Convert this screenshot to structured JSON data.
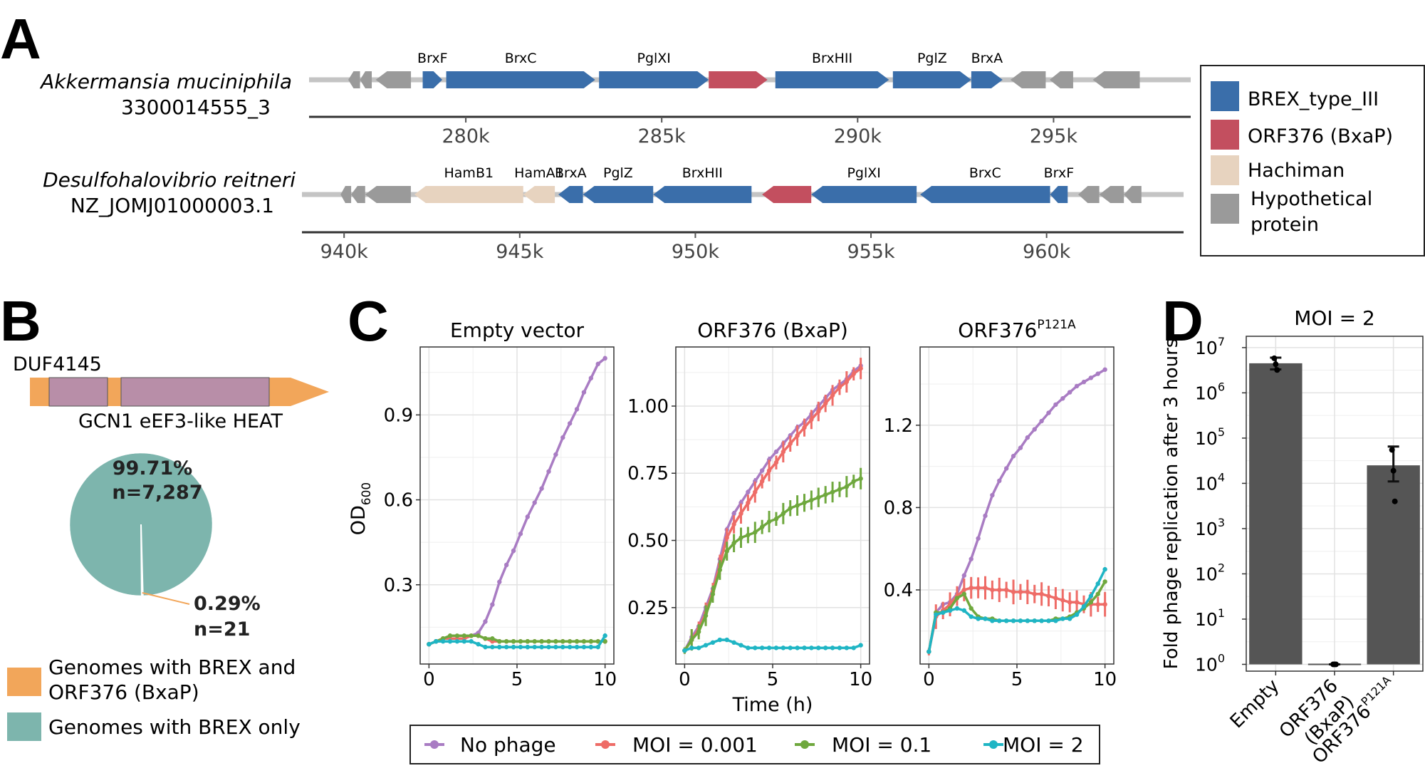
{
  "colors": {
    "brex": "#3a6eaa",
    "orf376": "#c34f5f",
    "hachiman": "#e7d3bf",
    "hypo": "#9a9a9a",
    "backbone": "#c4c4c4",
    "pie_brex": "#7db5ad",
    "pie_orf": "#f2a65a",
    "duf_orange": "#f2a65a",
    "duf_purple": "#b88ea8",
    "no_phage": "#a97cc3",
    "moi_0001": "#ee6c67",
    "moi_01": "#6fa83e",
    "moi_2": "#1fb5c4",
    "bar": "#555555"
  },
  "panel_a": {
    "label": "A",
    "legend": [
      {
        "key": "brex",
        "label": "BREX_type_III"
      },
      {
        "key": "orf376",
        "label": "ORF376 (BxaP)"
      },
      {
        "key": "hachiman",
        "label": "Hachiman"
      },
      {
        "key": "hypo",
        "label": "Hypothetical protein",
        "lines": [
          "Hypothetical",
          "protein"
        ]
      }
    ],
    "tracks": [
      {
        "name": "Akkermansia muciniphila",
        "id": "3300014555_3",
        "xlim": [
          276.0,
          298.5
        ],
        "ticks": [
          280,
          285,
          290,
          295
        ],
        "tick_labels": [
          "280k",
          "285k",
          "290k",
          "295k"
        ],
        "genes": [
          {
            "s": 277.0,
            "e": 277.3,
            "dir": -1,
            "type": "hypo",
            "label": ""
          },
          {
            "s": 277.3,
            "e": 277.6,
            "dir": -1,
            "type": "hypo",
            "label": ""
          },
          {
            "s": 277.7,
            "e": 278.6,
            "dir": -1,
            "type": "hypo",
            "label": ""
          },
          {
            "s": 278.9,
            "e": 279.4,
            "dir": 1,
            "type": "brex",
            "label": "BrxF"
          },
          {
            "s": 279.5,
            "e": 283.3,
            "dir": 1,
            "type": "brex",
            "label": "BrxC"
          },
          {
            "s": 283.4,
            "e": 286.2,
            "dir": 1,
            "type": "brex",
            "label": "PglXI"
          },
          {
            "s": 286.2,
            "e": 287.7,
            "dir": 1,
            "type": "orf376",
            "label": ""
          },
          {
            "s": 287.9,
            "e": 290.8,
            "dir": 1,
            "type": "brex",
            "label": "BrxHII"
          },
          {
            "s": 290.9,
            "e": 292.9,
            "dir": 1,
            "type": "brex",
            "label": "PglZ"
          },
          {
            "s": 292.9,
            "e": 293.7,
            "dir": 1,
            "type": "brex",
            "label": "BrxA"
          },
          {
            "s": 293.9,
            "e": 294.8,
            "dir": -1,
            "type": "hypo",
            "label": ""
          },
          {
            "s": 294.9,
            "e": 295.5,
            "dir": -1,
            "type": "hypo",
            "label": ""
          },
          {
            "s": 296.0,
            "e": 297.2,
            "dir": -1,
            "type": "hypo",
            "label": ""
          }
        ]
      },
      {
        "name": "Desulfohalovibrio reitneri",
        "id": "NZ_JOMJ01000003.1",
        "xlim": [
          938.8,
          963.9
        ],
        "ticks": [
          940,
          945,
          950,
          955,
          960
        ],
        "tick_labels": [
          "940k",
          "945k",
          "950k",
          "955k",
          "960k"
        ],
        "genes": [
          {
            "s": 939.9,
            "e": 940.2,
            "dir": -1,
            "type": "hypo",
            "label": ""
          },
          {
            "s": 940.2,
            "e": 940.6,
            "dir": -1,
            "type": "hypo",
            "label": ""
          },
          {
            "s": 940.6,
            "e": 941.9,
            "dir": -1,
            "type": "hypo",
            "label": ""
          },
          {
            "s": 942.0,
            "e": 945.1,
            "dir": -1,
            "type": "hachiman",
            "label": "HamB1"
          },
          {
            "s": 945.1,
            "e": 946.0,
            "dir": -1,
            "type": "hachiman",
            "label": "HamA1"
          },
          {
            "s": 946.1,
            "e": 946.8,
            "dir": -1,
            "type": "brex",
            "label": "BrxA"
          },
          {
            "s": 946.8,
            "e": 948.8,
            "dir": -1,
            "type": "brex",
            "label": "PglZ"
          },
          {
            "s": 948.8,
            "e": 951.6,
            "dir": -1,
            "type": "brex",
            "label": "BrxHII"
          },
          {
            "s": 951.9,
            "e": 953.3,
            "dir": -1,
            "type": "orf376",
            "label": ""
          },
          {
            "s": 953.3,
            "e": 956.3,
            "dir": -1,
            "type": "brex",
            "label": "PglXI"
          },
          {
            "s": 956.4,
            "e": 960.1,
            "dir": -1,
            "type": "brex",
            "label": "BrxC"
          },
          {
            "s": 960.1,
            "e": 960.6,
            "dir": -1,
            "type": "brex",
            "label": "BrxF"
          },
          {
            "s": 960.9,
            "e": 961.5,
            "dir": -1,
            "type": "hypo",
            "label": ""
          },
          {
            "s": 961.5,
            "e": 962.2,
            "dir": -1,
            "type": "hypo",
            "label": ""
          },
          {
            "s": 962.2,
            "e": 962.7,
            "dir": -1,
            "type": "hypo",
            "label": ""
          }
        ]
      }
    ]
  },
  "panel_b": {
    "label": "B",
    "domain_label_top": "DUF4145",
    "domain_label_bottom": "GCN1 eEF3-like HEAT",
    "pie": {
      "slices": [
        {
          "name": "Genomes with BREX only",
          "value": 7287,
          "percent": "99.71%",
          "count": "n=7,287",
          "color_key": "pie_brex"
        },
        {
          "name": "Genomes with BREX and ORF376 (BxaP)",
          "value": 21,
          "percent": "0.29%",
          "count": "n=21",
          "color_key": "pie_orf"
        }
      ]
    },
    "legend": [
      {
        "color_key": "pie_orf",
        "lines": [
          "Genomes with BREX and",
          "ORF376 (BxaP)"
        ]
      },
      {
        "color_key": "pie_brex",
        "lines": [
          "Genomes with BREX only"
        ]
      }
    ]
  },
  "panel_c": {
    "label": "C",
    "ylabel": "OD",
    "ylabel_sub": "600",
    "xlabel": "Time (h)",
    "chart_data": [
      {
        "type": "line",
        "title": "Empty vector",
        "title_sup": "",
        "xlim": [
          -0.5,
          10.5
        ],
        "ylim": [
          0.02,
          1.14
        ],
        "xticks": [
          0,
          5,
          10
        ],
        "yticks": [
          0.3,
          0.6,
          0.9
        ],
        "ytick_labels": [
          "0.3",
          "0.6",
          "0.9"
        ],
        "series": [
          {
            "name": "No phage",
            "color_key": "no_phage",
            "err": 0.008,
            "y": [
              0.09,
              0.1,
              0.11,
              0.11,
              0.11,
              0.11,
              0.12,
              0.13,
              0.17,
              0.23,
              0.31,
              0.37,
              0.42,
              0.48,
              0.54,
              0.59,
              0.64,
              0.7,
              0.76,
              0.82,
              0.87,
              0.92,
              0.98,
              1.03,
              1.08,
              1.1
            ]
          },
          {
            "name": "MOI = 0.001",
            "color_key": "moi_0001",
            "err": 0.008,
            "y": [
              0.09,
              0.1,
              0.11,
              0.11,
              0.11,
              0.11,
              0.12,
              0.12,
              0.11,
              0.1,
              0.1,
              0.1,
              0.1,
              0.1,
              0.1,
              0.1,
              0.1,
              0.1,
              0.1,
              0.1,
              0.1,
              0.1,
              0.1,
              0.1,
              0.1,
              0.1
            ]
          },
          {
            "name": "MOI = 0.1",
            "color_key": "moi_01",
            "err": 0.008,
            "y": [
              0.09,
              0.1,
              0.11,
              0.12,
              0.12,
              0.12,
              0.12,
              0.12,
              0.11,
              0.11,
              0.1,
              0.1,
              0.1,
              0.1,
              0.1,
              0.1,
              0.1,
              0.1,
              0.1,
              0.1,
              0.1,
              0.1,
              0.1,
              0.1,
              0.1,
              0.1
            ]
          },
          {
            "name": "MOI = 2",
            "color_key": "moi_2",
            "err": 0.008,
            "y": [
              0.09,
              0.1,
              0.1,
              0.1,
              0.1,
              0.1,
              0.1,
              0.09,
              0.08,
              0.08,
              0.08,
              0.08,
              0.08,
              0.08,
              0.08,
              0.08,
              0.08,
              0.08,
              0.08,
              0.08,
              0.08,
              0.08,
              0.08,
              0.08,
              0.08,
              0.12
            ]
          }
        ]
      },
      {
        "type": "line",
        "title": "ORF376 (BxaP)",
        "title_sup": "",
        "xlim": [
          -0.5,
          10.5
        ],
        "ylim": [
          0.04,
          1.22
        ],
        "xticks": [
          0,
          5,
          10
        ],
        "yticks": [
          0.25,
          0.5,
          0.75,
          1.0
        ],
        "ytick_labels": [
          "0.25",
          "0.50",
          "0.75",
          "1.00"
        ],
        "series": [
          {
            "name": "No phage",
            "color_key": "no_phage",
            "err": 0.012,
            "y": [
              0.09,
              0.14,
              0.18,
              0.25,
              0.32,
              0.43,
              0.54,
              0.6,
              0.64,
              0.68,
              0.72,
              0.76,
              0.8,
              0.83,
              0.86,
              0.89,
              0.92,
              0.94,
              0.97,
              1.0,
              1.03,
              1.06,
              1.08,
              1.1,
              1.13,
              1.15
            ]
          },
          {
            "name": "MOI = 0.001",
            "color_key": "moi_0001",
            "err": 0.04,
            "y": [
              0.09,
              0.13,
              0.17,
              0.23,
              0.31,
              0.41,
              0.51,
              0.56,
              0.6,
              0.64,
              0.68,
              0.72,
              0.76,
              0.79,
              0.83,
              0.86,
              0.89,
              0.92,
              0.95,
              0.98,
              1.01,
              1.04,
              1.07,
              1.09,
              1.12,
              1.14
            ]
          },
          {
            "name": "MOI = 0.1",
            "color_key": "moi_01",
            "err": 0.04,
            "y": [
              0.09,
              0.13,
              0.16,
              0.22,
              0.3,
              0.39,
              0.46,
              0.49,
              0.51,
              0.52,
              0.53,
              0.55,
              0.57,
              0.58,
              0.6,
              0.62,
              0.63,
              0.64,
              0.65,
              0.66,
              0.67,
              0.68,
              0.69,
              0.7,
              0.72,
              0.73
            ]
          },
          {
            "name": "MOI = 2",
            "color_key": "moi_2",
            "err": 0.005,
            "y": [
              0.09,
              0.1,
              0.1,
              0.11,
              0.12,
              0.13,
              0.13,
              0.12,
              0.11,
              0.1,
              0.1,
              0.1,
              0.1,
              0.1,
              0.1,
              0.1,
              0.1,
              0.1,
              0.1,
              0.1,
              0.1,
              0.1,
              0.1,
              0.1,
              0.1,
              0.11
            ]
          }
        ]
      },
      {
        "type": "line",
        "title": "ORF376",
        "title_sup": "P121A",
        "xlim": [
          -0.5,
          10.5
        ],
        "ylim": [
          0.04,
          1.58
        ],
        "xticks": [
          0,
          5,
          10
        ],
        "yticks": [
          0.4,
          0.8,
          1.2
        ],
        "ytick_labels": [
          "0.4",
          "0.8",
          "1.2"
        ],
        "series": [
          {
            "name": "No phage",
            "color_key": "no_phage",
            "err": 0.01,
            "y": [
              0.1,
              0.29,
              0.33,
              0.34,
              0.38,
              0.47,
              0.55,
              0.65,
              0.76,
              0.86,
              0.93,
              0.99,
              1.05,
              1.09,
              1.14,
              1.18,
              1.22,
              1.26,
              1.3,
              1.33,
              1.36,
              1.39,
              1.41,
              1.43,
              1.45,
              1.47
            ]
          },
          {
            "name": "MOI = 0.001",
            "color_key": "moi_0001",
            "err": 0.06,
            "y": [
              0.1,
              0.27,
              0.3,
              0.33,
              0.37,
              0.4,
              0.41,
              0.41,
              0.41,
              0.4,
              0.4,
              0.4,
              0.39,
              0.39,
              0.39,
              0.38,
              0.38,
              0.37,
              0.36,
              0.35,
              0.34,
              0.34,
              0.33,
              0.33,
              0.33,
              0.33
            ]
          },
          {
            "name": "MOI = 0.1",
            "color_key": "moi_01",
            "err": 0.01,
            "y": [
              0.1,
              0.29,
              0.29,
              0.31,
              0.36,
              0.38,
              0.31,
              0.27,
              0.26,
              0.26,
              0.25,
              0.25,
              0.25,
              0.25,
              0.25,
              0.25,
              0.25,
              0.25,
              0.26,
              0.26,
              0.27,
              0.29,
              0.31,
              0.34,
              0.38,
              0.44
            ]
          },
          {
            "name": "MOI = 2",
            "color_key": "moi_2",
            "err": 0.01,
            "y": [
              0.1,
              0.28,
              0.29,
              0.3,
              0.31,
              0.3,
              0.27,
              0.26,
              0.26,
              0.25,
              0.25,
              0.25,
              0.25,
              0.25,
              0.25,
              0.25,
              0.25,
              0.25,
              0.25,
              0.26,
              0.26,
              0.28,
              0.32,
              0.37,
              0.43,
              0.5
            ]
          }
        ]
      }
    ],
    "legend": [
      {
        "color_key": "no_phage",
        "label": "No phage"
      },
      {
        "color_key": "moi_0001",
        "label": "MOI = 0.001"
      },
      {
        "color_key": "moi_01",
        "label": "MOI = 0.1"
      },
      {
        "color_key": "moi_2",
        "label": "MOI = 2"
      }
    ]
  },
  "panel_d": {
    "label": "D",
    "chart_data": {
      "type": "bar",
      "title": "MOI = 2",
      "ylabel": "Fold phage replication after 3 hours",
      "yscale": "log10",
      "ylim_log10": [
        -0.15,
        7.25
      ],
      "yticks_exp": [
        0,
        1,
        2,
        3,
        4,
        5,
        6,
        7
      ],
      "categories": [
        {
          "label": "Empty",
          "lines": [
            "Empty"
          ],
          "sup": ""
        },
        {
          "label": "ORF376 (BxaP)",
          "lines": [
            "ORF376",
            "(BxaP)"
          ],
          "sup": ""
        },
        {
          "label": "ORF376P121A",
          "lines": [
            "ORF376"
          ],
          "sup": "P121A"
        }
      ],
      "values": [
        4500000,
        1,
        25000
      ],
      "error_low": [
        3300000,
        1,
        11000
      ],
      "error_high": [
        6000000,
        1,
        65000
      ],
      "points": [
        [
          5800000,
          4300000,
          3200000
        ],
        [
          1,
          1,
          1
        ],
        [
          55000,
          19000,
          4000
        ]
      ]
    }
  }
}
